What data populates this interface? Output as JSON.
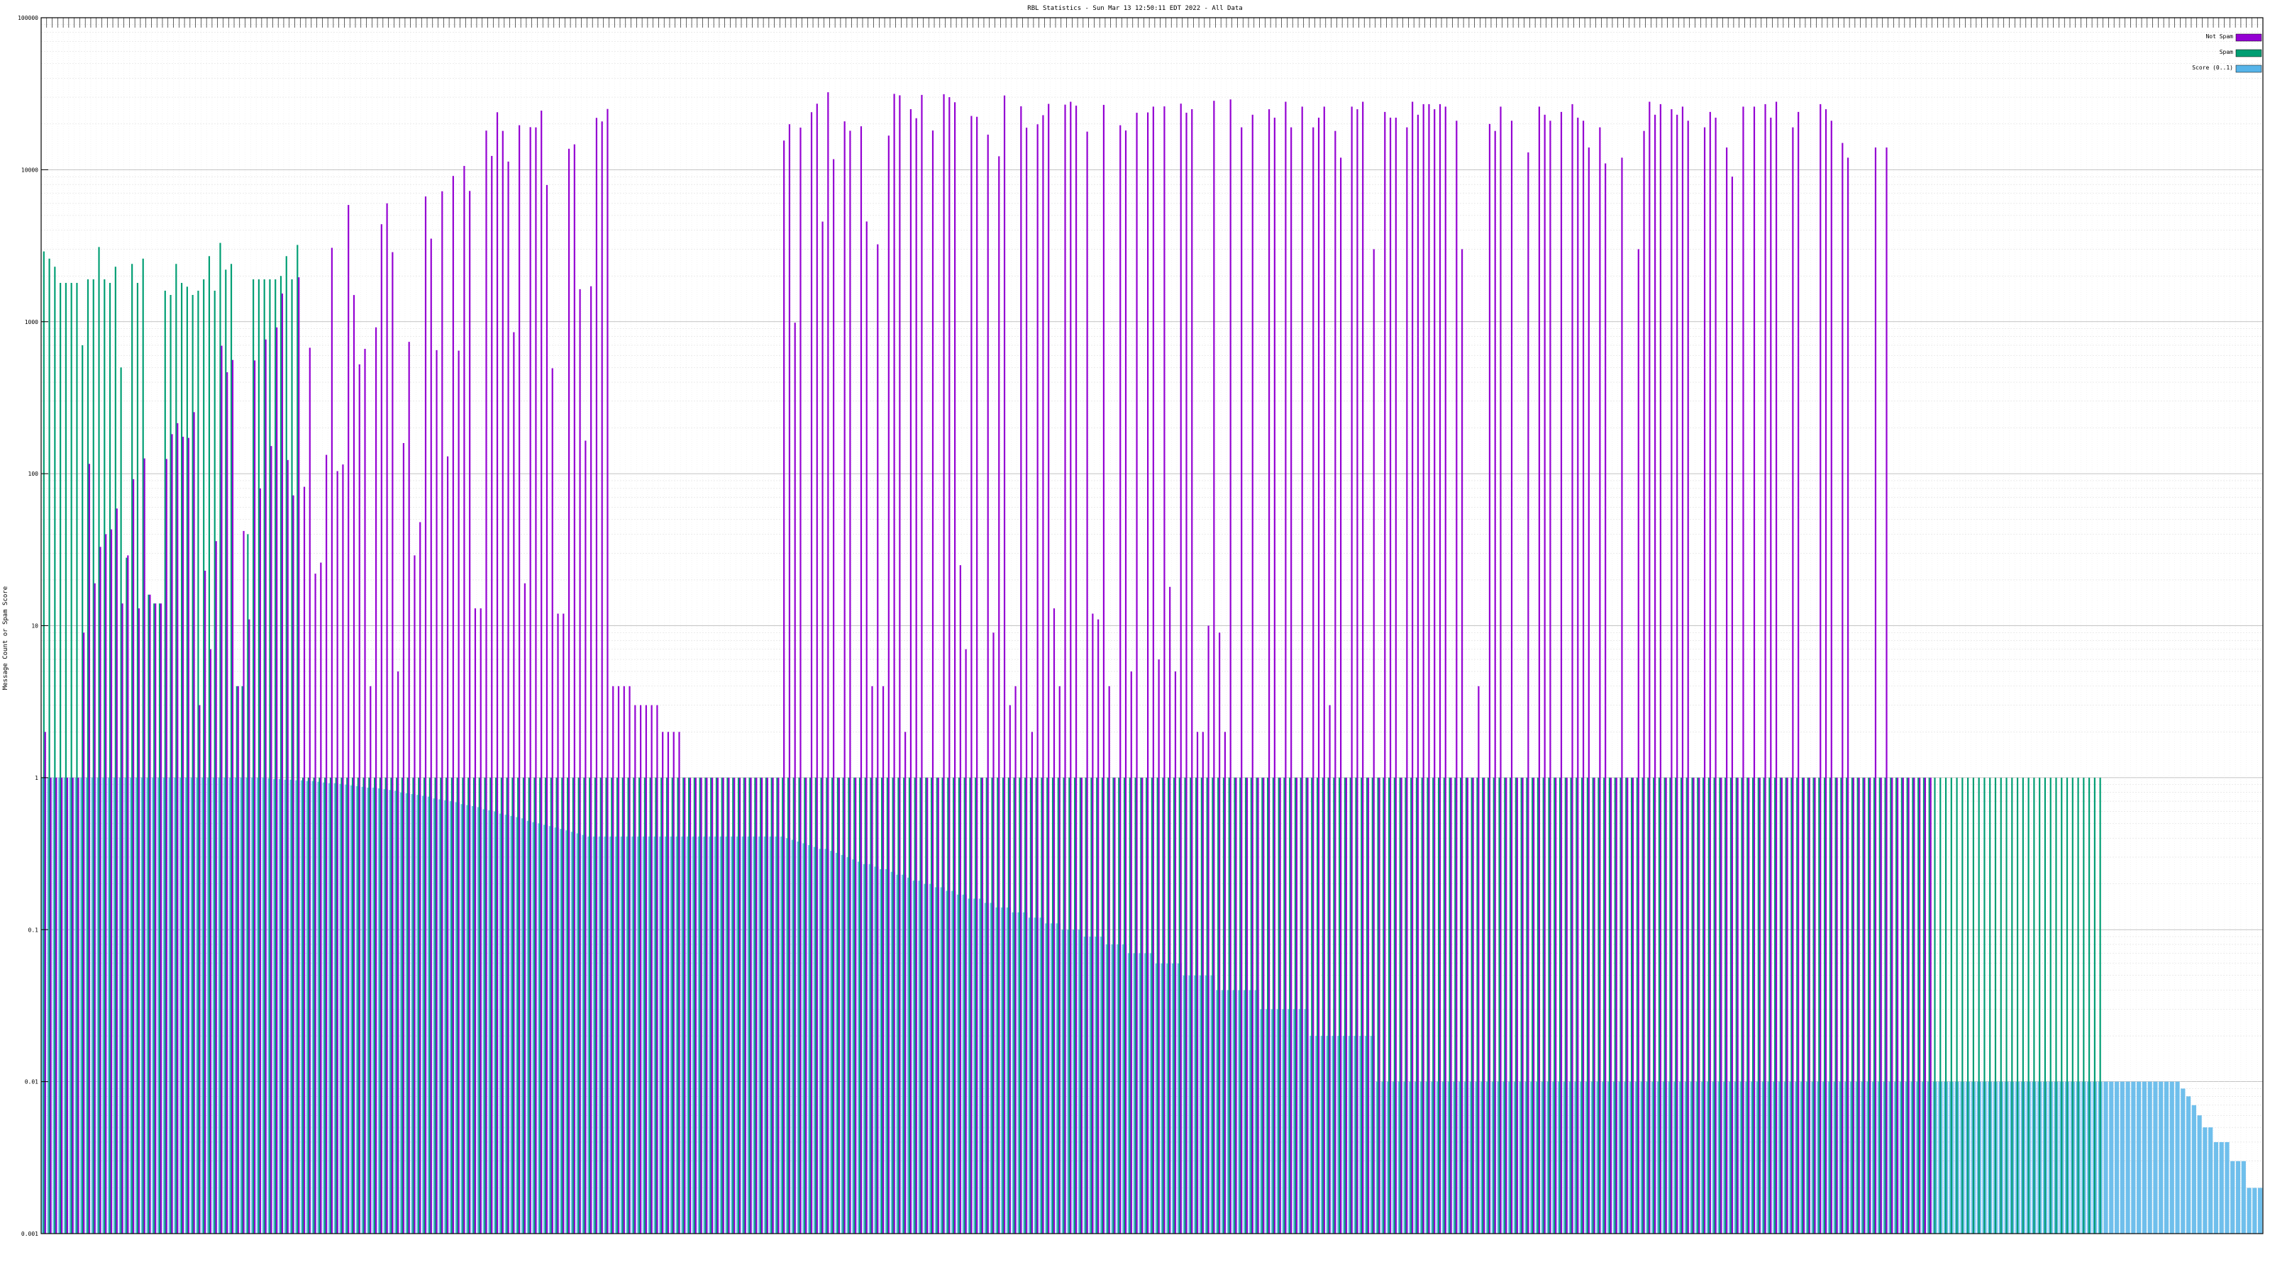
{
  "chart_data": {
    "type": "bar",
    "title": "RBL Statistics - Sun Mar 13 12:50:11 EDT 2022 - All Data",
    "ylabel": "Message Count or Spam Score",
    "xlabel": "",
    "y_scale": "log",
    "ylim": [
      0.001,
      100000
    ],
    "y_ticks": [
      "0.001",
      "0.01",
      "0.1",
      "1",
      "10",
      "100",
      "1000",
      "10000",
      "100000"
    ],
    "grid": true,
    "legend_position": "top-right",
    "colors": {
      "not_spam": "#9400d3",
      "spam": "#009e73",
      "score": "#56b4e9"
    },
    "series": [
      {
        "name": "Not Spam",
        "values": [
          2.0,
          1.0,
          1.0,
          1.0,
          1.0,
          1.0,
          1.0,
          9.0,
          116.0,
          19.0,
          33.0,
          40.0,
          43.0,
          59.0,
          14.0,
          29.0,
          92.0,
          13.0,
          126.0,
          16.0,
          14.0,
          14.0,
          125.0,
          182.0,
          215.0,
          175.0,
          172.0,
          254.0,
          3.0,
          23.0,
          7.0,
          36.0,
          695.0,
          465.0,
          560.0,
          4.0,
          42.0,
          11.0,
          556.0,
          80.0,
          764.0,
          152.0,
          917.0,
          1532.0,
          123.0,
          72.0,
          1960.0,
          82.0,
          674.0,
          22.0,
          26.0,
          133.0,
          3063.0,
          104.0,
          115.0,
          5863.0,
          1498.0,
          524.0,
          663.0,
          4.0,
          918.0,
          4379.0,
          6010.0,
          2869.0,
          5.0,
          159.0,
          737.0,
          29.0,
          48.0,
          6668.0,
          3520.0,
          650.0,
          7214.0,
          130.0,
          9100.0,
          645.0,
          10588.0,
          7251.0,
          13.0,
          13.0,
          18087.0,
          12322.0,
          23884.0,
          18010.0,
          11313.0,
          853.0,
          19620.0,
          19.0,
          19055.0,
          18993.0,
          24482.0,
          7931.0,
          494.0,
          12.0,
          12.0,
          13740.0,
          14682.0,
          1637.0,
          165.0,
          1711.0,
          21929.0,
          20784.0,
          25105.0,
          4.0,
          4.0,
          4.0,
          4.0,
          3.0,
          3.0,
          3.0,
          3.0,
          3.0,
          2.0,
          2.0,
          2.0,
          2.0,
          1.0,
          1.0,
          1.0,
          1.0,
          1.0,
          1.0,
          1.0,
          1.0,
          1.0,
          1.0,
          1.0,
          1.0,
          1.0,
          1.0,
          1.0,
          1.0,
          1.0,
          1.0,
          15555.0,
          19916.0,
          985.0,
          18930.0,
          1.0,
          23898.0,
          27183.0,
          4557.0,
          32339.0,
          11729.0,
          1.0,
          20808.0,
          18050.0,
          1.0,
          19306.0,
          4564.0,
          4.0,
          3229.0,
          4.0,
          16766.0,
          31558.0,
          30862.0,
          2.0,
          25016.0,
          21817.0,
          31054.0,
          1.0,
          18115.0,
          1.0,
          31400.0,
          30017.0,
          27778.0,
          25.0,
          7.0,
          22585.0,
          22294.0,
          1.0,
          17015.0,
          9.0,
          12260.0,
          30778.0,
          3.0,
          4.0,
          26148.0,
          18897.0,
          2.0,
          19901.0,
          22849.0,
          27115.0,
          13.0,
          4.0,
          26800.0,
          28004.0,
          26400.0,
          1.0,
          17808.0,
          12.0,
          11.0,
          26708.0,
          4.0,
          1.0,
          19616.0,
          18123.0,
          5.0,
          23698.0,
          1.0,
          23817.0,
          26012.0,
          6.0,
          26103.0,
          18.0,
          5.0,
          27212.0,
          23718.0,
          25014.0,
          2.0,
          2.0,
          10.0,
          28410.0,
          9.0,
          2.0,
          29011.0,
          1.0,
          19006.0,
          1.0,
          23001.0,
          1.0,
          1.0,
          25001.0,
          22001.0,
          1.0,
          28001.0,
          19001.0,
          1.0,
          26001.0,
          1.0,
          19001.0,
          22001.0,
          26001.0,
          3.0,
          18001.0,
          12001.0,
          1.0,
          26001.0,
          25001.0,
          28001.0,
          1.0,
          3001.0,
          1.0,
          24001.0,
          22001.0,
          22001.0,
          1.0,
          19001.0,
          28001.0,
          23001.0,
          27001.0,
          27001.0,
          25001.0,
          27001.0,
          26001.0,
          1.0,
          21001.0,
          3001.0,
          1.0,
          1.0,
          4.0,
          1.0,
          20001.0,
          18001.0,
          26001.0,
          1.0,
          21001.0,
          1.0,
          1.0,
          13001.0,
          1.0,
          26001.0,
          23001.0,
          21001.0,
          1.0,
          24001.0,
          1.0,
          27001.0,
          22001.0,
          21001.0,
          14001.0,
          1.0,
          19001.0,
          11001.0,
          1.0,
          1.0,
          12001.0,
          1.0,
          1.0,
          3001.0,
          18001.0,
          28001.0,
          23001.0,
          27001.0,
          1.0,
          25001.0,
          23001.0,
          26001.0,
          21001.0,
          1.0,
          1.0,
          19001.0,
          24001.0,
          22001.0,
          1.0,
          14001.0,
          9001.0,
          1.0,
          26001.0,
          1.0,
          26001.0,
          1.0,
          27001.0,
          22001.0,
          28001.0,
          1.0,
          1.0,
          19001.0,
          24001.0,
          1.0,
          1.0,
          1.0,
          27001.0,
          25001.0,
          21001.0,
          1.0,
          15001.0,
          12001.0,
          1.0,
          1.0,
          1.0,
          1.0,
          14001.0,
          1.0,
          14001.0,
          1.0,
          1.0,
          1.0,
          1.0,
          1.0,
          1.0,
          1.0,
          1.0
        ],
        "note": ""
      },
      {
        "name": "Spam",
        "values": [
          2900.0,
          2600.0,
          2300.0,
          1800.0,
          1800.0,
          1800.0,
          1800.0,
          700.0,
          1900.0,
          1900.0,
          3100.0,
          1900.0,
          1800.0,
          2300.0,
          500.0,
          28.0,
          2400.0,
          1800.0,
          2600.0,
          16.0,
          14.0,
          14.0,
          1600.0,
          1500.0,
          2400.0,
          1800.0,
          1700.0,
          1500.0,
          1600.0,
          1900.0,
          2700.0,
          1600.0,
          3300.0,
          2200.0,
          2400.0,
          4.0,
          4.0,
          40.0,
          1900.0,
          1900.0,
          1900.0,
          1900.0,
          1900.0,
          2000.0,
          2700.0,
          1900.0,
          3200.0,
          1.0,
          1.0,
          1.0,
          1.0,
          1.0,
          1.0,
          1.0,
          1.0,
          1.0,
          1.0,
          1.0,
          1.0,
          1.0,
          1.0,
          1.0,
          1.0,
          1.0,
          1.0,
          1.0,
          1.0,
          1.0,
          1.0,
          1.0,
          1.0,
          1.0,
          1.0,
          1.0,
          1.0,
          1.0,
          1.0,
          1.0,
          1.0,
          1.0,
          1.0,
          1.0,
          1.0,
          1.0,
          1.0,
          1.0,
          1.0,
          1.0,
          1.0,
          1.0,
          1.0,
          1.0,
          1.0,
          1.0,
          1.0,
          1.0,
          1.0,
          1.0,
          1.0,
          1.0,
          1.0,
          1.0,
          1.0,
          1.0,
          1.0,
          1.0,
          1.0,
          1.0,
          1.0,
          1.0,
          1.0,
          1.0,
          1.0,
          1.0,
          1.0,
          1.0,
          1.0,
          1.0,
          1.0,
          1.0,
          1.0,
          1.0,
          1.0,
          1.0,
          1.0,
          1.0,
          1.0,
          1.0,
          1.0,
          1.0,
          1.0,
          1.0,
          1.0,
          1.0,
          1.0,
          1.0,
          1.0,
          1.0,
          1.0,
          1.0,
          1.0,
          1.0,
          1.0,
          1.0,
          1.0,
          1.0,
          1.0,
          1.0,
          1.0,
          1.0,
          1.0,
          1.0,
          1.0,
          1.0,
          1.0,
          1.0,
          1.0,
          1.0,
          1.0,
          1.0,
          1.0,
          1.0,
          1.0,
          1.0,
          1.0,
          1.0,
          1.0,
          1.0,
          1.0,
          1.0,
          1.0,
          1.0,
          1.0,
          1.0,
          1.0,
          1.0,
          1.0,
          1.0,
          1.0,
          1.0,
          1.0,
          1.0,
          1.0,
          1.0,
          1.0,
          1.0,
          1.0,
          1.0,
          1.0,
          1.0,
          1.0,
          1.0,
          1.0,
          1.0,
          1.0,
          1.0,
          1.0,
          1.0,
          1.0,
          1.0,
          1.0,
          1.0,
          1.0,
          1.0,
          1.0,
          1.0,
          1.0,
          1.0,
          1.0,
          1.0,
          1.0,
          1.0,
          1.0,
          1.0,
          1.0,
          1.0,
          1.0,
          1.0,
          1.0,
          1.0,
          1.0,
          1.0,
          1.0,
          1.0,
          1.0,
          1.0,
          1.0,
          1.0,
          1.0,
          1.0,
          1.0,
          1.0,
          1.0,
          1.0,
          1.0,
          1.0,
          1.0,
          1.0,
          1.0,
          1.0,
          1.0,
          1.0,
          1.0,
          1.0,
          1.0,
          1.0,
          1.0,
          1.0,
          1.0,
          1.0,
          1.0,
          1.0,
          1.0,
          1.0,
          1.0,
          1.0,
          1.0,
          1.0,
          1.0,
          1.0,
          1.0,
          1.0,
          1.0,
          1.0,
          1.0,
          1.0,
          1.0,
          1.0,
          1.0,
          1.0,
          1.0,
          1.0,
          1.0,
          1.0,
          1.0,
          1.0,
          1.0,
          1.0,
          1.0,
          1.0,
          1.0,
          1.0,
          1.0,
          1.0,
          1.0,
          1.0,
          1.0,
          1.0,
          1.0,
          1.0,
          1.0,
          1.0,
          1.0,
          1.0,
          1.0,
          1.0,
          1.0,
          1.0,
          1.0,
          1.0,
          1.0,
          1.0,
          1.0,
          1.0,
          1.0,
          1.0,
          1.0,
          1.0,
          1.0,
          1.0,
          1.0,
          1.0,
          1.0,
          1.0,
          1.0,
          1.0,
          1.0,
          1.0,
          1.0,
          1.0,
          1.0,
          1.0,
          1.0,
          1.0,
          1.0,
          1.0,
          1.0,
          1.0,
          1.0,
          1.0,
          1.0,
          1.0,
          1.0,
          1.0,
          1.0,
          1.0,
          1.0,
          1.0,
          1.0,
          1.0,
          1.0,
          1.0,
          1.0,
          1.0,
          1.0,
          1.0,
          1.0,
          1.0,
          1.0,
          1.0,
          1.0,
          1.0,
          1.0,
          1.0,
          1.0,
          1.0,
          1.0,
          1.0,
          1.0,
          1.0,
          1.0,
          1.0,
          1.0,
          1.0,
          1.0,
          1.0,
          1.0,
          1.0,
          1.0,
          1.0,
          1.0,
          1.0,
          1.0,
          1.0
        ]
      },
      {
        "name": "Score (0..1)",
        "values": [
          1.0,
          1.0,
          1.0,
          1.0,
          1.0,
          1.0,
          1.0,
          1.0,
          1.0,
          1.0,
          1.0,
          1.0,
          1.0,
          1.0,
          1.0,
          1.0,
          1.0,
          1.0,
          1.0,
          1.0,
          1.0,
          1.0,
          1.0,
          1.0,
          1.0,
          1.0,
          1.0,
          1.0,
          1.0,
          1.0,
          1.0,
          1.0,
          1.0,
          1.0,
          1.0,
          1.0,
          1.0,
          1.0,
          1.0,
          1.0,
          1.0,
          0.99,
          0.98,
          0.98,
          0.97,
          0.97,
          0.96,
          0.96,
          0.95,
          0.95,
          0.94,
          0.93,
          0.92,
          0.92,
          0.91,
          0.9,
          0.89,
          0.88,
          0.87,
          0.86,
          0.86,
          0.85,
          0.84,
          0.83,
          0.82,
          0.8,
          0.79,
          0.78,
          0.77,
          0.76,
          0.75,
          0.73,
          0.72,
          0.71,
          0.7,
          0.69,
          0.67,
          0.66,
          0.65,
          0.64,
          0.62,
          0.61,
          0.6,
          0.58,
          0.57,
          0.56,
          0.55,
          0.54,
          0.52,
          0.51,
          0.5,
          0.49,
          0.48,
          0.47,
          0.46,
          0.45,
          0.44,
          0.43,
          0.42,
          0.41,
          0.41,
          0.41,
          0.41,
          0.41,
          0.41,
          0.41,
          0.41,
          0.41,
          0.41,
          0.41,
          0.41,
          0.41,
          0.41,
          0.41,
          0.41,
          0.41,
          0.41,
          0.41,
          0.41,
          0.41,
          0.41,
          0.41,
          0.41,
          0.41,
          0.41,
          0.41,
          0.41,
          0.41,
          0.41,
          0.41,
          0.41,
          0.41,
          0.41,
          0.41,
          0.41,
          0.4,
          0.39,
          0.38,
          0.37,
          0.36,
          0.35,
          0.34,
          0.34,
          0.33,
          0.32,
          0.31,
          0.3,
          0.29,
          0.28,
          0.27,
          0.27,
          0.26,
          0.25,
          0.25,
          0.24,
          0.23,
          0.23,
          0.22,
          0.21,
          0.21,
          0.2,
          0.2,
          0.19,
          0.19,
          0.18,
          0.18,
          0.17,
          0.17,
          0.16,
          0.16,
          0.16,
          0.15,
          0.15,
          0.14,
          0.14,
          0.14,
          0.13,
          0.13,
          0.13,
          0.12,
          0.12,
          0.12,
          0.11,
          0.11,
          0.11,
          0.1,
          0.1,
          0.1,
          0.1,
          0.09,
          0.09,
          0.09,
          0.09,
          0.08,
          0.08,
          0.08,
          0.08,
          0.07,
          0.07,
          0.07,
          0.07,
          0.07,
          0.06,
          0.06,
          0.06,
          0.06,
          0.06,
          0.05,
          0.05,
          0.05,
          0.05,
          0.05,
          0.05,
          0.04,
          0.04,
          0.04,
          0.04,
          0.04,
          0.04,
          0.04,
          0.04,
          0.03,
          0.03,
          0.03,
          0.03,
          0.03,
          0.03,
          0.03,
          0.03,
          0.03,
          0.02,
          0.02,
          0.02,
          0.02,
          0.02,
          0.02,
          0.02,
          0.02,
          0.02,
          0.02,
          0.02,
          0.02,
          0.01,
          0.01,
          0.01,
          0.01,
          0.01,
          0.01,
          0.01,
          0.01,
          0.01,
          0.01,
          0.01,
          0.01,
          0.01,
          0.01,
          0.01,
          0.01,
          0.01,
          0.01,
          0.01,
          0.01,
          0.01,
          0.01,
          0.01,
          0.01,
          0.01,
          0.01,
          0.01,
          0.01,
          0.01,
          0.01,
          0.01,
          0.01,
          0.01,
          0.01,
          0.01,
          0.01,
          0.01,
          0.01,
          0.01,
          0.01,
          0.01,
          0.01,
          0.01,
          0.01,
          0.01,
          0.01,
          0.01,
          0.01,
          0.01,
          0.01,
          0.01,
          0.01,
          0.01,
          0.01,
          0.01,
          0.01,
          0.01,
          0.01,
          0.01,
          0.01,
          0.01,
          0.01,
          0.01,
          0.01,
          0.01,
          0.01,
          0.01,
          0.01,
          0.01,
          0.01,
          0.01,
          0.01,
          0.01,
          0.01,
          0.01,
          0.01,
          0.01,
          0.01,
          0.01,
          0.01,
          0.01,
          0.01,
          0.01,
          0.01,
          0.01,
          0.01,
          0.01,
          0.01,
          0.01,
          0.01,
          0.01,
          0.01,
          0.01,
          0.01,
          0.01,
          0.01,
          0.01,
          0.01,
          0.01,
          0.01,
          0.01,
          0.01,
          0.01,
          0.01,
          0.01,
          0.01,
          0.01,
          0.01,
          0.01,
          0.01,
          0.01,
          0.01,
          0.01,
          0.01,
          0.01,
          0.01,
          0.01,
          0.01,
          0.01,
          0.01,
          0.01,
          0.01,
          0.01,
          0.01,
          0.01,
          0.01,
          0.01,
          0.01,
          0.01,
          0.01,
          0.01,
          0.01,
          0.01,
          0.01,
          0.01,
          0.01,
          0.01,
          0.01,
          0.01,
          0.01,
          0.01,
          0.01,
          0.01,
          0.01,
          0.01,
          0.01,
          0.009,
          0.008,
          0.007,
          0.006,
          0.005,
          0.005,
          0.004,
          0.004,
          0.004,
          0.003,
          0.003,
          0.003,
          0.002,
          0.002,
          0.002
        ]
      }
    ]
  }
}
